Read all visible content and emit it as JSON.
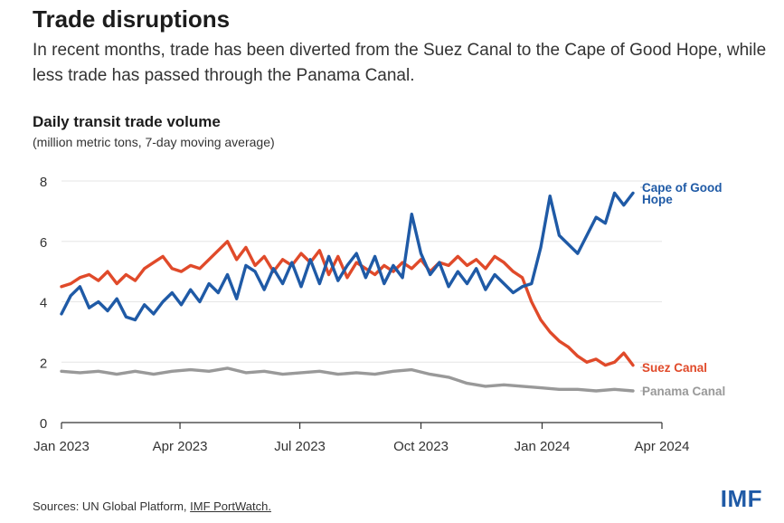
{
  "header": {
    "title": "Trade disruptions",
    "subtitle": "In recent months, trade has been diverted from the Suez Canal to the Cape of Good Hope, while less trade has passed through the Panama Canal."
  },
  "footer": {
    "source_prefix": "Sources: UN Global Platform, ",
    "source_link": "IMF PortWatch.",
    "logo": "IMF"
  },
  "chart_data": {
    "type": "line",
    "title": "Daily transit trade volume",
    "subtitle": "(million metric tons, 7-day moving average)",
    "xlabel": "",
    "ylabel": "",
    "ylim": [
      0,
      8
    ],
    "yticks": [
      0,
      2,
      4,
      6,
      8
    ],
    "xlim": [
      "2023-01-01",
      "2024-04-01"
    ],
    "xticks": [
      {
        "date": "2023-01-01",
        "label": "Jan 2023"
      },
      {
        "date": "2023-04-01",
        "label": "Apr 2023"
      },
      {
        "date": "2023-07-01",
        "label": "Jul 2023"
      },
      {
        "date": "2023-10-01",
        "label": "Oct 2023"
      },
      {
        "date": "2024-01-01",
        "label": "Jan 2024"
      },
      {
        "date": "2024-04-01",
        "label": "Apr 2024"
      }
    ],
    "grid": "horizontal",
    "legend": "right (end labels)",
    "series": [
      {
        "name": "Cape of Good Hope",
        "label_lines": [
          "Cape of Good",
          "Hope"
        ],
        "color": "#1f5aa6",
        "points": [
          [
            "2023-01-01",
            3.6
          ],
          [
            "2023-01-08",
            4.2
          ],
          [
            "2023-01-15",
            4.5
          ],
          [
            "2023-01-22",
            3.8
          ],
          [
            "2023-01-29",
            4.0
          ],
          [
            "2023-02-05",
            3.7
          ],
          [
            "2023-02-12",
            4.1
          ],
          [
            "2023-02-19",
            3.5
          ],
          [
            "2023-02-26",
            3.4
          ],
          [
            "2023-03-05",
            3.9
          ],
          [
            "2023-03-12",
            3.6
          ],
          [
            "2023-03-19",
            4.0
          ],
          [
            "2023-03-26",
            4.3
          ],
          [
            "2023-04-02",
            3.9
          ],
          [
            "2023-04-09",
            4.4
          ],
          [
            "2023-04-16",
            4.0
          ],
          [
            "2023-04-23",
            4.6
          ],
          [
            "2023-04-30",
            4.3
          ],
          [
            "2023-05-07",
            4.9
          ],
          [
            "2023-05-14",
            4.1
          ],
          [
            "2023-05-21",
            5.2
          ],
          [
            "2023-05-28",
            5.0
          ],
          [
            "2023-06-04",
            4.4
          ],
          [
            "2023-06-11",
            5.1
          ],
          [
            "2023-06-18",
            4.6
          ],
          [
            "2023-06-25",
            5.3
          ],
          [
            "2023-07-02",
            4.5
          ],
          [
            "2023-07-09",
            5.4
          ],
          [
            "2023-07-16",
            4.6
          ],
          [
            "2023-07-23",
            5.5
          ],
          [
            "2023-07-30",
            4.7
          ],
          [
            "2023-08-06",
            5.2
          ],
          [
            "2023-08-13",
            5.6
          ],
          [
            "2023-08-20",
            4.8
          ],
          [
            "2023-08-27",
            5.5
          ],
          [
            "2023-09-03",
            4.6
          ],
          [
            "2023-09-10",
            5.2
          ],
          [
            "2023-09-17",
            4.8
          ],
          [
            "2023-09-24",
            6.9
          ],
          [
            "2023-10-01",
            5.6
          ],
          [
            "2023-10-08",
            4.9
          ],
          [
            "2023-10-15",
            5.3
          ],
          [
            "2023-10-22",
            4.5
          ],
          [
            "2023-10-29",
            5.0
          ],
          [
            "2023-11-05",
            4.6
          ],
          [
            "2023-11-12",
            5.1
          ],
          [
            "2023-11-19",
            4.4
          ],
          [
            "2023-11-26",
            4.9
          ],
          [
            "2023-12-03",
            4.6
          ],
          [
            "2023-12-10",
            4.3
          ],
          [
            "2023-12-17",
            4.5
          ],
          [
            "2023-12-24",
            4.6
          ],
          [
            "2023-12-31",
            5.8
          ],
          [
            "2024-01-07",
            7.5
          ],
          [
            "2024-01-14",
            6.2
          ],
          [
            "2024-01-21",
            5.9
          ],
          [
            "2024-01-28",
            5.6
          ],
          [
            "2024-02-04",
            6.2
          ],
          [
            "2024-02-11",
            6.8
          ],
          [
            "2024-02-18",
            6.6
          ],
          [
            "2024-02-25",
            7.6
          ],
          [
            "2024-03-03",
            7.2
          ],
          [
            "2024-03-10",
            7.6
          ]
        ]
      },
      {
        "name": "Suez Canal",
        "label_lines": [
          "Suez Canal"
        ],
        "color": "#e04a2a",
        "points": [
          [
            "2023-01-01",
            4.5
          ],
          [
            "2023-01-08",
            4.6
          ],
          [
            "2023-01-15",
            4.8
          ],
          [
            "2023-01-22",
            4.9
          ],
          [
            "2023-01-29",
            4.7
          ],
          [
            "2023-02-05",
            5.0
          ],
          [
            "2023-02-12",
            4.6
          ],
          [
            "2023-02-19",
            4.9
          ],
          [
            "2023-02-26",
            4.7
          ],
          [
            "2023-03-05",
            5.1
          ],
          [
            "2023-03-12",
            5.3
          ],
          [
            "2023-03-19",
            5.5
          ],
          [
            "2023-03-26",
            5.1
          ],
          [
            "2023-04-02",
            5.0
          ],
          [
            "2023-04-09",
            5.2
          ],
          [
            "2023-04-16",
            5.1
          ],
          [
            "2023-04-23",
            5.4
          ],
          [
            "2023-04-30",
            5.7
          ],
          [
            "2023-05-07",
            6.0
          ],
          [
            "2023-05-14",
            5.4
          ],
          [
            "2023-05-21",
            5.8
          ],
          [
            "2023-05-28",
            5.2
          ],
          [
            "2023-06-04",
            5.5
          ],
          [
            "2023-06-11",
            5.0
          ],
          [
            "2023-06-18",
            5.4
          ],
          [
            "2023-06-25",
            5.2
          ],
          [
            "2023-07-02",
            5.6
          ],
          [
            "2023-07-09",
            5.3
          ],
          [
            "2023-07-16",
            5.7
          ],
          [
            "2023-07-23",
            4.9
          ],
          [
            "2023-07-30",
            5.5
          ],
          [
            "2023-08-06",
            4.8
          ],
          [
            "2023-08-13",
            5.3
          ],
          [
            "2023-08-20",
            5.1
          ],
          [
            "2023-08-27",
            4.9
          ],
          [
            "2023-09-03",
            5.2
          ],
          [
            "2023-09-10",
            5.0
          ],
          [
            "2023-09-17",
            5.3
          ],
          [
            "2023-09-24",
            5.1
          ],
          [
            "2023-10-01",
            5.4
          ],
          [
            "2023-10-08",
            5.0
          ],
          [
            "2023-10-15",
            5.3
          ],
          [
            "2023-10-22",
            5.2
          ],
          [
            "2023-10-29",
            5.5
          ],
          [
            "2023-11-05",
            5.2
          ],
          [
            "2023-11-12",
            5.4
          ],
          [
            "2023-11-19",
            5.1
          ],
          [
            "2023-11-26",
            5.5
          ],
          [
            "2023-12-03",
            5.3
          ],
          [
            "2023-12-10",
            5.0
          ],
          [
            "2023-12-17",
            4.8
          ],
          [
            "2023-12-24",
            4.0
          ],
          [
            "2023-12-31",
            3.4
          ],
          [
            "2024-01-07",
            3.0
          ],
          [
            "2024-01-14",
            2.7
          ],
          [
            "2024-01-21",
            2.5
          ],
          [
            "2024-01-28",
            2.2
          ],
          [
            "2024-02-04",
            2.0
          ],
          [
            "2024-02-11",
            2.1
          ],
          [
            "2024-02-18",
            1.9
          ],
          [
            "2024-02-25",
            2.0
          ],
          [
            "2024-03-03",
            2.3
          ],
          [
            "2024-03-10",
            1.9
          ]
        ]
      },
      {
        "name": "Panama Canal",
        "label_lines": [
          "Panama Canal"
        ],
        "color": "#999999",
        "points": [
          [
            "2023-01-01",
            1.7
          ],
          [
            "2023-01-15",
            1.65
          ],
          [
            "2023-01-29",
            1.7
          ],
          [
            "2023-02-12",
            1.6
          ],
          [
            "2023-02-26",
            1.7
          ],
          [
            "2023-03-12",
            1.6
          ],
          [
            "2023-03-26",
            1.7
          ],
          [
            "2023-04-09",
            1.75
          ],
          [
            "2023-04-23",
            1.7
          ],
          [
            "2023-05-07",
            1.8
          ],
          [
            "2023-05-21",
            1.65
          ],
          [
            "2023-06-04",
            1.7
          ],
          [
            "2023-06-18",
            1.6
          ],
          [
            "2023-07-02",
            1.65
          ],
          [
            "2023-07-16",
            1.7
          ],
          [
            "2023-07-30",
            1.6
          ],
          [
            "2023-08-13",
            1.65
          ],
          [
            "2023-08-27",
            1.6
          ],
          [
            "2023-09-10",
            1.7
          ],
          [
            "2023-09-24",
            1.75
          ],
          [
            "2023-10-08",
            1.6
          ],
          [
            "2023-10-22",
            1.5
          ],
          [
            "2023-11-05",
            1.3
          ],
          [
            "2023-11-19",
            1.2
          ],
          [
            "2023-12-03",
            1.25
          ],
          [
            "2023-12-17",
            1.2
          ],
          [
            "2023-12-31",
            1.15
          ],
          [
            "2024-01-14",
            1.1
          ],
          [
            "2024-01-28",
            1.1
          ],
          [
            "2024-02-11",
            1.05
          ],
          [
            "2024-02-25",
            1.1
          ],
          [
            "2024-03-10",
            1.05
          ]
        ]
      }
    ]
  }
}
